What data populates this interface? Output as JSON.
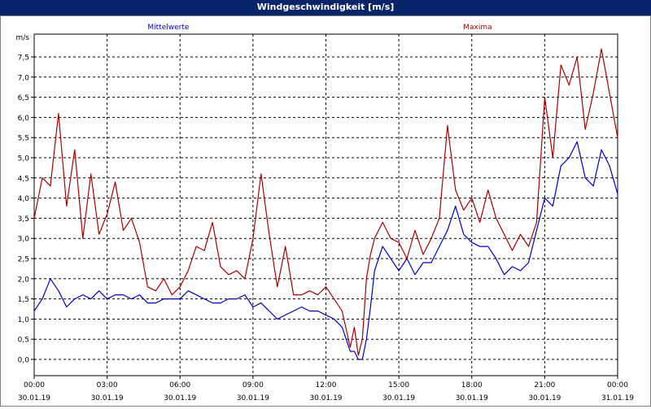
{
  "window": {
    "title": "Windgeschwindigkeit [m/s]"
  },
  "chart_data": {
    "type": "line",
    "title": "Windgeschwindigkeit [m/s]",
    "ylabel": "m/s",
    "ylim": [
      0,
      8
    ],
    "yticks": [
      "0,0",
      "0,5",
      "1,0",
      "1,5",
      "2,0",
      "2,5",
      "3,0",
      "3,5",
      "4,0",
      "4,5",
      "5,0",
      "5,5",
      "6,0",
      "6,5",
      "7,0",
      "7,5"
    ],
    "xlim": [
      "30.01.19 00:00",
      "31.01.19 00:00"
    ],
    "xticks": [
      {
        "time": "00:00",
        "date": "30.01.19"
      },
      {
        "time": "03:00",
        "date": "30.01.19"
      },
      {
        "time": "06:00",
        "date": "30.01.19"
      },
      {
        "time": "09:00",
        "date": "30.01.19"
      },
      {
        "time": "12:00",
        "date": "30.01.19"
      },
      {
        "time": "15:00",
        "date": "30.01.19"
      },
      {
        "time": "18:00",
        "date": "30.01.19"
      },
      {
        "time": "21:00",
        "date": "30.01.19"
      },
      {
        "time": "00:00",
        "date": "31.01.19"
      }
    ],
    "grid": true,
    "legend": "top",
    "series": [
      {
        "name": "Mittelwerte",
        "color": "#0000c8",
        "x": [
          "00:00",
          "00:20",
          "00:40",
          "01:00",
          "01:20",
          "01:40",
          "02:00",
          "02:20",
          "02:40",
          "03:00",
          "03:20",
          "03:40",
          "04:00",
          "04:20",
          "04:40",
          "05:00",
          "05:20",
          "05:40",
          "06:00",
          "06:20",
          "06:40",
          "07:00",
          "07:20",
          "07:40",
          "08:00",
          "08:20",
          "08:40",
          "09:00",
          "09:20",
          "09:40",
          "10:00",
          "10:20",
          "10:40",
          "11:00",
          "11:20",
          "11:40",
          "12:00",
          "12:20",
          "12:40",
          "13:00",
          "13:10",
          "13:20",
          "13:30",
          "13:40",
          "13:50",
          "14:00",
          "14:20",
          "14:40",
          "15:00",
          "15:20",
          "15:40",
          "16:00",
          "16:20",
          "16:40",
          "17:00",
          "17:20",
          "17:40",
          "18:00",
          "18:20",
          "18:40",
          "19:00",
          "19:20",
          "19:40",
          "20:00",
          "20:20",
          "20:40",
          "21:00",
          "21:20",
          "21:40",
          "22:00",
          "22:20",
          "22:40",
          "23:00",
          "23:20",
          "23:40",
          "24:00"
        ],
        "values": [
          1.2,
          1.5,
          2.0,
          1.7,
          1.3,
          1.5,
          1.6,
          1.5,
          1.7,
          1.5,
          1.6,
          1.6,
          1.5,
          1.6,
          1.4,
          1.4,
          1.5,
          1.5,
          1.5,
          1.7,
          1.6,
          1.5,
          1.4,
          1.4,
          1.5,
          1.5,
          1.6,
          1.3,
          1.4,
          1.2,
          1.0,
          1.1,
          1.2,
          1.3,
          1.2,
          1.2,
          1.1,
          1.0,
          0.8,
          0.2,
          0.2,
          0.0,
          0.0,
          0.5,
          1.3,
          2.2,
          2.8,
          2.5,
          2.2,
          2.5,
          2.1,
          2.4,
          2.4,
          2.8,
          3.2,
          3.8,
          3.1,
          2.9,
          2.8,
          2.8,
          2.5,
          2.1,
          2.3,
          2.2,
          2.4,
          3.2,
          4.0,
          3.8,
          4.8,
          5.0,
          5.4,
          4.5,
          4.3,
          5.2,
          4.8,
          4.1
        ]
      },
      {
        "name": "Maxima",
        "color": "#aa0000",
        "x": [
          "00:00",
          "00:20",
          "00:40",
          "01:00",
          "01:20",
          "01:40",
          "02:00",
          "02:20",
          "02:40",
          "03:00",
          "03:20",
          "03:40",
          "04:00",
          "04:20",
          "04:40",
          "05:00",
          "05:20",
          "05:40",
          "06:00",
          "06:20",
          "06:40",
          "07:00",
          "07:20",
          "07:40",
          "08:00",
          "08:20",
          "08:40",
          "09:00",
          "09:20",
          "09:40",
          "10:00",
          "10:20",
          "10:40",
          "11:00",
          "11:20",
          "11:40",
          "12:00",
          "12:20",
          "12:40",
          "13:00",
          "13:10",
          "13:20",
          "13:30",
          "13:40",
          "13:50",
          "14:00",
          "14:20",
          "14:40",
          "15:00",
          "15:20",
          "15:40",
          "16:00",
          "16:20",
          "16:40",
          "17:00",
          "17:20",
          "17:40",
          "18:00",
          "18:20",
          "18:40",
          "19:00",
          "19:20",
          "19:40",
          "20:00",
          "20:20",
          "20:40",
          "21:00",
          "21:20",
          "21:40",
          "22:00",
          "22:20",
          "22:40",
          "23:00",
          "23:20",
          "23:40",
          "24:00"
        ],
        "values": [
          3.5,
          4.5,
          4.3,
          6.1,
          3.8,
          5.2,
          3.0,
          4.6,
          3.1,
          3.6,
          4.4,
          3.2,
          3.5,
          2.9,
          1.8,
          1.7,
          2.0,
          1.6,
          1.8,
          2.2,
          2.8,
          2.7,
          3.4,
          2.3,
          2.1,
          2.2,
          2.0,
          3.0,
          4.6,
          3.1,
          1.8,
          2.8,
          1.6,
          1.6,
          1.7,
          1.6,
          1.8,
          1.5,
          1.2,
          0.3,
          0.8,
          0.1,
          0.5,
          2.0,
          2.6,
          3.0,
          3.4,
          3.0,
          2.9,
          2.5,
          3.2,
          2.6,
          3.0,
          3.5,
          5.8,
          4.2,
          3.7,
          4.0,
          3.4,
          4.2,
          3.5,
          3.1,
          2.7,
          3.1,
          2.8,
          3.4,
          6.5,
          5.0,
          7.3,
          6.8,
          7.5,
          5.7,
          6.6,
          7.7,
          6.6,
          5.5
        ]
      }
    ]
  }
}
